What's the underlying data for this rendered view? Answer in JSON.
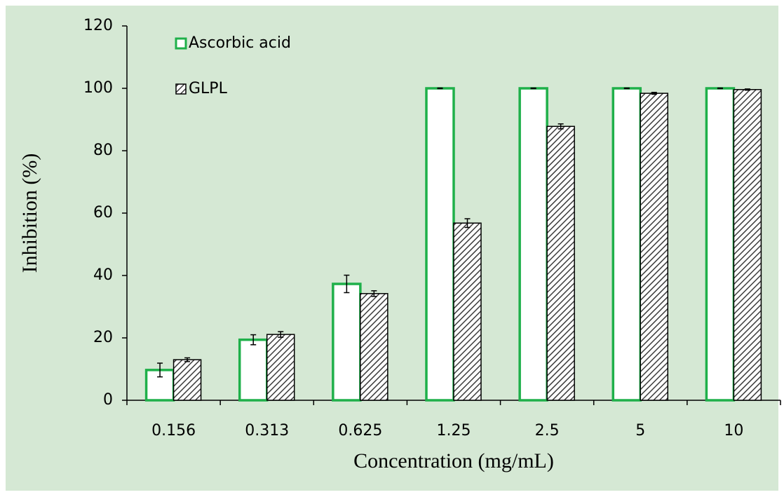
{
  "chart_data": {
    "type": "bar",
    "x_label": "Concentration (mg/mL)",
    "y_label": "Inhibition (%)",
    "categories": [
      "0.156",
      "0.313",
      "0.625",
      "1.25",
      "2.5",
      "5",
      "10"
    ],
    "series": [
      {
        "name": "Ascorbic acid",
        "color": "#1fb04a",
        "style": "outline",
        "values": [
          9.7,
          19.4,
          37.3,
          100,
          100,
          100,
          100
        ],
        "errors": [
          2.2,
          1.6,
          2.8,
          0.1,
          0.1,
          0.1,
          0.1
        ]
      },
      {
        "name": "GLPL",
        "color": "#3c3c3c",
        "style": "hatch",
        "values": [
          13.0,
          21.1,
          34.2,
          56.8,
          87.8,
          98.4,
          99.6
        ],
        "errors": [
          0.6,
          0.9,
          0.9,
          1.4,
          0.8,
          0.3,
          0.2
        ]
      }
    ],
    "ylim": [
      0,
      120
    ],
    "yticks": [
      0,
      20,
      40,
      60,
      80,
      100,
      120
    ],
    "grid": false,
    "legend": "upper left"
  }
}
